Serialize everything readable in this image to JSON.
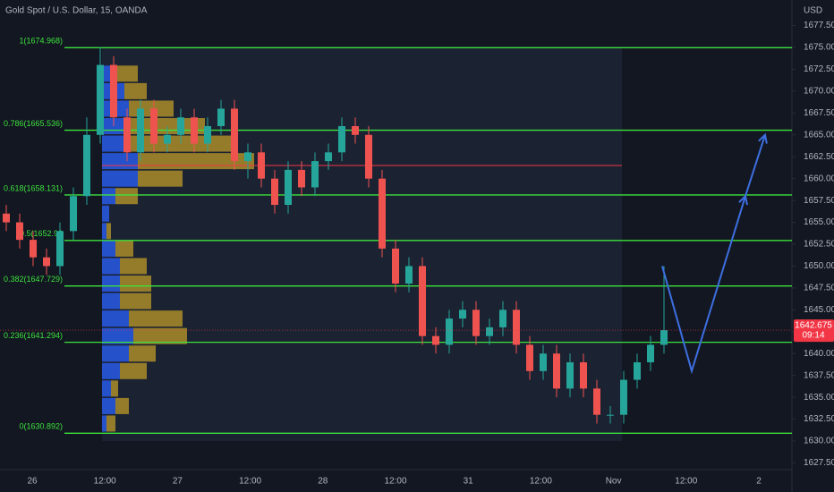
{
  "chart_data": {
    "type": "candlestick",
    "title": "Gold Spot / U.S. Dollar, 15, OANDA",
    "currency": "USD",
    "ylim": [
      1626.73,
      1680.42
    ],
    "yticks": [
      {
        "value": 1627.5,
        "label": "1627.500"
      },
      {
        "value": 1630,
        "label": "1630.000"
      },
      {
        "value": 1632.5,
        "label": "1632.500"
      },
      {
        "value": 1635,
        "label": "1635.000"
      },
      {
        "value": 1637.5,
        "label": "1637.500"
      },
      {
        "value": 1640,
        "label": "1640.000"
      },
      {
        "value": 1642.5,
        "label": "1642.500"
      },
      {
        "value": 1645,
        "label": "1645.000"
      },
      {
        "value": 1647.5,
        "label": "1647.500"
      },
      {
        "value": 1650,
        "label": "1650.000"
      },
      {
        "value": 1652.5,
        "label": "1652.500"
      },
      {
        "value": 1655,
        "label": "1655.000"
      },
      {
        "value": 1657.5,
        "label": "1657.500"
      },
      {
        "value": 1660,
        "label": "1660.000"
      },
      {
        "value": 1662.5,
        "label": "1662.500"
      },
      {
        "value": 1665,
        "label": "1665.000"
      },
      {
        "value": 1667.5,
        "label": "1667.500"
      },
      {
        "value": 1670,
        "label": "1670.000"
      },
      {
        "value": 1672.5,
        "label": "1672.500"
      },
      {
        "value": 1675,
        "label": "1675.000"
      },
      {
        "value": 1677.5,
        "label": "1677.500"
      }
    ],
    "xticks": [
      "26",
      "12:00",
      "27",
      "12:00",
      "28",
      "12:00",
      "31",
      "12:00",
      "Nov",
      "12:00",
      "2"
    ],
    "grid": false,
    "up_color": "#26a69a",
    "down_color": "#ef5350",
    "candles": {
      "open": [
        1656,
        1655,
        1653,
        1651,
        1650,
        1654,
        1658,
        1665,
        1673,
        1667,
        1663,
        1668,
        1664,
        1665,
        1667,
        1664,
        1666,
        1668,
        1662,
        1663,
        1660,
        1657,
        1661,
        1659,
        1662,
        1663,
        1666,
        1665,
        1660,
        1652,
        1648,
        1650,
        1642,
        1641,
        1644,
        1645,
        1642,
        1643,
        1645,
        1641,
        1638,
        1640,
        1636,
        1639,
        1636,
        1633,
        1633,
        1637,
        1639,
        1641
      ],
      "high": [
        1657,
        1656,
        1654,
        1652,
        1655,
        1659,
        1667,
        1675,
        1674,
        1668,
        1669,
        1669,
        1666,
        1668,
        1668,
        1667,
        1669,
        1669,
        1664,
        1664,
        1661,
        1662,
        1662,
        1663,
        1664,
        1667,
        1667,
        1666,
        1661,
        1653,
        1651,
        1651,
        1643,
        1645,
        1646,
        1646,
        1644,
        1646,
        1646,
        1642,
        1641,
        1641,
        1640,
        1640,
        1637,
        1634,
        1638,
        1640,
        1642,
        1650
      ],
      "low": [
        1654,
        1652,
        1650,
        1649,
        1649,
        1653,
        1657,
        1664,
        1666,
        1662,
        1662,
        1663,
        1663,
        1664,
        1663,
        1663,
        1665,
        1661,
        1660,
        1659,
        1656,
        1656,
        1658,
        1658,
        1661,
        1662,
        1664,
        1659,
        1651,
        1647,
        1647,
        1641,
        1640,
        1640,
        1643,
        1641,
        1641,
        1642,
        1640,
        1637,
        1637,
        1635,
        1635,
        1635,
        1632,
        1632,
        1632,
        1636,
        1638,
        1640
      ],
      "close": [
        1655,
        1653,
        1651,
        1650,
        1654,
        1658,
        1665,
        1673,
        1667,
        1663,
        1668,
        1664,
        1665,
        1667,
        1664,
        1666,
        1668,
        1662,
        1663,
        1660,
        1657,
        1661,
        1659,
        1662,
        1663,
        1666,
        1665,
        1660,
        1652,
        1648,
        1650,
        1642,
        1641,
        1644,
        1645,
        1642,
        1643,
        1645,
        1641,
        1638,
        1640,
        1636,
        1639,
        1636,
        1633,
        1633,
        1637,
        1639,
        1641,
        1642.675
      ]
    },
    "last_price": {
      "value": 1642.675,
      "label": "1642.675",
      "countdown": "09:14",
      "color": "#f23645"
    },
    "fib_color": "#3ce23c",
    "fib_levels": [
      {
        "value": 1674.968,
        "label": "1(1674.968)"
      },
      {
        "value": 1665.536,
        "label": "0.786(1665.536)"
      },
      {
        "value": 1658.131,
        "label": "0.618(1658.131)"
      },
      {
        "value": 1652.93,
        "label": "0.5(1652.93"
      },
      {
        "value": 1647.729,
        "label": "0.382(1647.729)"
      },
      {
        "value": 1641.294,
        "label": "0.236(1641.294)"
      },
      {
        "value": 1630.892,
        "label": "0(1630.892)"
      }
    ],
    "poc": {
      "value": 1661.5,
      "color": "#f23645"
    },
    "volume_profile": {
      "up_color": "#2962ff",
      "down_color": "#c9a227",
      "prices": [
        1672,
        1670,
        1668,
        1666,
        1664,
        1662,
        1660,
        1658,
        1656,
        1654,
        1652,
        1650,
        1648,
        1646,
        1644,
        1642,
        1640,
        1638,
        1636,
        1634,
        1632
      ],
      "up": [
        15,
        25,
        30,
        25,
        30,
        40,
        40,
        15,
        8,
        5,
        15,
        20,
        20,
        20,
        30,
        35,
        30,
        20,
        10,
        15,
        5
      ],
      "down": [
        25,
        25,
        50,
        90,
        120,
        130,
        50,
        25,
        0,
        5,
        20,
        30,
        35,
        35,
        60,
        60,
        30,
        30,
        8,
        15,
        10
      ]
    },
    "projection": {
      "values": [
        1650,
        1638,
        1658,
        1665
      ],
      "color": "#3d6fe0"
    }
  }
}
